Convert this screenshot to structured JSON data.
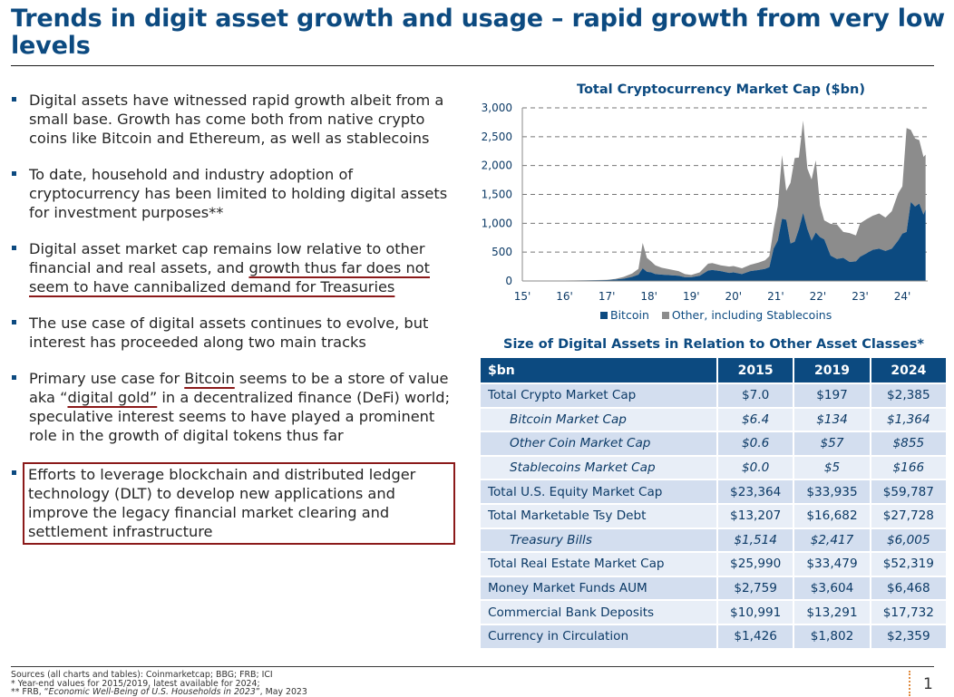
{
  "title": "Trends in digit asset growth and usage – rapid growth from very low levels",
  "bullets": [
    {
      "text": "Digital assets have witnessed rapid growth albeit from a small base. Growth has come both from native crypto coins like Bitcoin and Ethereum, as well as stablecoins"
    },
    {
      "text": "To date, household and industry adoption of cryptocurrency has been limited to holding digital assets for investment purposes**"
    },
    {
      "pre": "Digital asset market cap remains low relative to other financial and real assets, and ",
      "underlined": "growth thus far does not seem to have cannibalized demand for Treasuries"
    },
    {
      "text": "The use case of digital assets continues to evolve, but interest has proceeded along two main tracks"
    },
    {
      "pre": "Primary use case for ",
      "u1": "Bitcoin",
      "mid": " seems to be a store of value aka “",
      "u2": "digital gold”",
      "post": " in a decentralized finance (DeFi) world; speculative interest seems to have played a prominent role in the growth of digital tokens thus far"
    },
    {
      "text": "Efforts to leverage blockchain and distributed ledger technology (DLT) to develop new applications and improve the legacy financial market clearing and settlement infrastructure"
    }
  ],
  "chart_data": {
    "type": "area",
    "stacked": true,
    "title": "Total Cryptocurrency Market Cap ($bn)",
    "xlabel": "",
    "ylabel": "",
    "ylim": [
      0,
      3000
    ],
    "yticks": [
      0,
      500,
      1000,
      1500,
      2000,
      2500,
      3000
    ],
    "ytick_labels": [
      "0",
      "500",
      "1,000",
      "1,500",
      "2,000",
      "2,500",
      "3,000"
    ],
    "xlim": [
      2015,
      2024.6
    ],
    "xticks": [
      2015,
      2016,
      2017,
      2018,
      2019,
      2020,
      2021,
      2022,
      2023,
      2024
    ],
    "xtick_labels": [
      "15'",
      "16'",
      "17'",
      "18'",
      "19'",
      "20'",
      "21'",
      "22'",
      "23'",
      "24'"
    ],
    "grid": "horizontal-dashed",
    "legend_position": "bottom",
    "colors": {
      "bitcoin": "#0c4a80",
      "other": "#8c8c8c"
    },
    "x": [
      2015.0,
      2015.5,
      2016.0,
      2016.5,
      2017.0,
      2017.2,
      2017.4,
      2017.6,
      2017.75,
      2017.85,
      2017.95,
      2018.05,
      2018.15,
      2018.3,
      2018.5,
      2018.7,
      2018.85,
      2019.0,
      2019.2,
      2019.4,
      2019.5,
      2019.7,
      2019.9,
      2020.0,
      2020.2,
      2020.4,
      2020.6,
      2020.75,
      2020.85,
      2020.95,
      2021.05,
      2021.15,
      2021.25,
      2021.35,
      2021.45,
      2021.55,
      2021.65,
      2021.75,
      2021.85,
      2021.95,
      2022.05,
      2022.15,
      2022.3,
      2022.45,
      2022.6,
      2022.75,
      2022.9,
      2023.0,
      2023.15,
      2023.3,
      2023.45,
      2023.6,
      2023.75,
      2023.9,
      2024.0,
      2024.1,
      2024.2,
      2024.3,
      2024.4,
      2024.5,
      2024.55
    ],
    "series": [
      {
        "name": "Bitcoin",
        "values": [
          4,
          4,
          6,
          10,
          16,
          25,
          40,
          70,
          110,
          220,
          160,
          150,
          120,
          110,
          100,
          90,
          65,
          65,
          90,
          180,
          190,
          170,
          140,
          150,
          120,
          170,
          190,
          210,
          240,
          560,
          700,
          1080,
          1060,
          650,
          680,
          900,
          1180,
          900,
          700,
          840,
          760,
          720,
          440,
          380,
          400,
          330,
          340,
          420,
          480,
          540,
          560,
          520,
          560,
          700,
          820,
          850,
          1370,
          1290,
          1340,
          1150,
          1240
        ]
      },
      {
        "name": "Other, including Stablecoins",
        "values": [
          1,
          1,
          1,
          2,
          4,
          10,
          30,
          60,
          100,
          440,
          240,
          190,
          150,
          120,
          100,
          80,
          55,
          40,
          60,
          120,
          120,
          100,
          110,
          110,
          100,
          110,
          130,
          150,
          190,
          340,
          600,
          1100,
          500,
          1050,
          1450,
          1240,
          1600,
          1050,
          1060,
          1250,
          550,
          330,
          550,
          600,
          450,
          500,
          450,
          580,
          590,
          590,
          610,
          580,
          650,
          820,
          820,
          1800,
          1250,
          1180,
          1100,
          1000,
          950
        ]
      }
    ]
  },
  "table": {
    "title": "Size of Digital Assets in Relation to Other Asset Classes*",
    "headers": [
      "$bn",
      "2015",
      "2019",
      "2024"
    ],
    "rows": [
      {
        "label": "Total Crypto Market Cap",
        "values": [
          "$7.0",
          "$197",
          "$2,385"
        ],
        "sub": false
      },
      {
        "label": "Bitcoin Market Cap",
        "values": [
          "$6.4",
          "$134",
          "$1,364"
        ],
        "sub": true
      },
      {
        "label": "Other Coin Market Cap",
        "values": [
          "$0.6",
          "$57",
          "$855"
        ],
        "sub": true
      },
      {
        "label": "Stablecoins Market Cap",
        "values": [
          "$0.0",
          "$5",
          "$166"
        ],
        "sub": true
      },
      {
        "label": "Total U.S. Equity Market Cap",
        "values": [
          "$23,364",
          "$33,935",
          "$59,787"
        ],
        "sub": false
      },
      {
        "label": "Total Marketable Tsy Debt",
        "values": [
          "$13,207",
          "$16,682",
          "$27,728"
        ],
        "sub": false
      },
      {
        "label": "Treasury Bills",
        "values": [
          "$1,514",
          "$2,417",
          "$6,005"
        ],
        "sub": true
      },
      {
        "label": "Total Real Estate Market Cap",
        "values": [
          "$25,990",
          "$33,479",
          "$52,319"
        ],
        "sub": false
      },
      {
        "label": "Money Market Funds AUM",
        "values": [
          "$2,759",
          "$3,604",
          "$6,468"
        ],
        "sub": false
      },
      {
        "label": "Commercial Bank Deposits",
        "values": [
          "$10,991",
          "$13,291",
          "$17,732"
        ],
        "sub": false
      },
      {
        "label": "Currency in Circulation",
        "values": [
          "$1,426",
          "$1,802",
          "$2,359"
        ],
        "sub": false
      }
    ]
  },
  "footnotes": {
    "sources": "Sources (all charts and tables): Coinmarketcap; BBG; FRB; ICI",
    "note1": "* Year-end values for 2015/2019, latest available for 2024;",
    "note2_prefix": "** FRB, “",
    "note2_italic": "Economic Well-Being of U.S. Households in 2023",
    "note2_suffix": "”, May 2023"
  },
  "page_number": "1"
}
